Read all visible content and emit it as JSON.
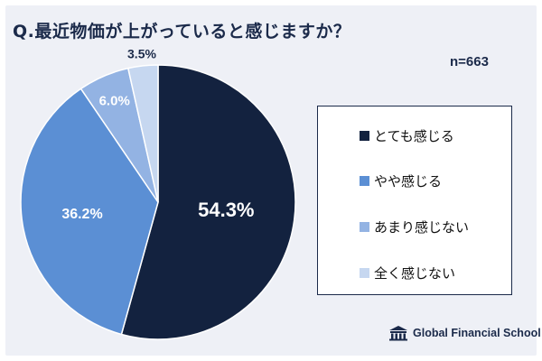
{
  "title": "Q.最近物価が上がっていると感じますか？",
  "sample_size": "n=663",
  "brand": "Global Financial School",
  "chart_data": {
    "type": "pie",
    "title": "Q.最近物価が上がっていると感じますか？",
    "slices": [
      {
        "label": "とても感じる",
        "value": 54.3,
        "display": "54.3%",
        "color": "#13223f",
        "label_color": "#ffffff"
      },
      {
        "label": "やや感じる",
        "value": 36.2,
        "display": "36.2%",
        "color": "#5b8fd4",
        "label_color": "#ffffff"
      },
      {
        "label": "あまり感じない",
        "value": 6.0,
        "display": "6.0%",
        "color": "#93b3e3",
        "label_color": "#ffffff"
      },
      {
        "label": "全く感じない",
        "value": 3.5,
        "display": "3.5%",
        "color": "#c6d7f0",
        "label_color": "#1b2a4a"
      }
    ],
    "legend_position": "right"
  }
}
